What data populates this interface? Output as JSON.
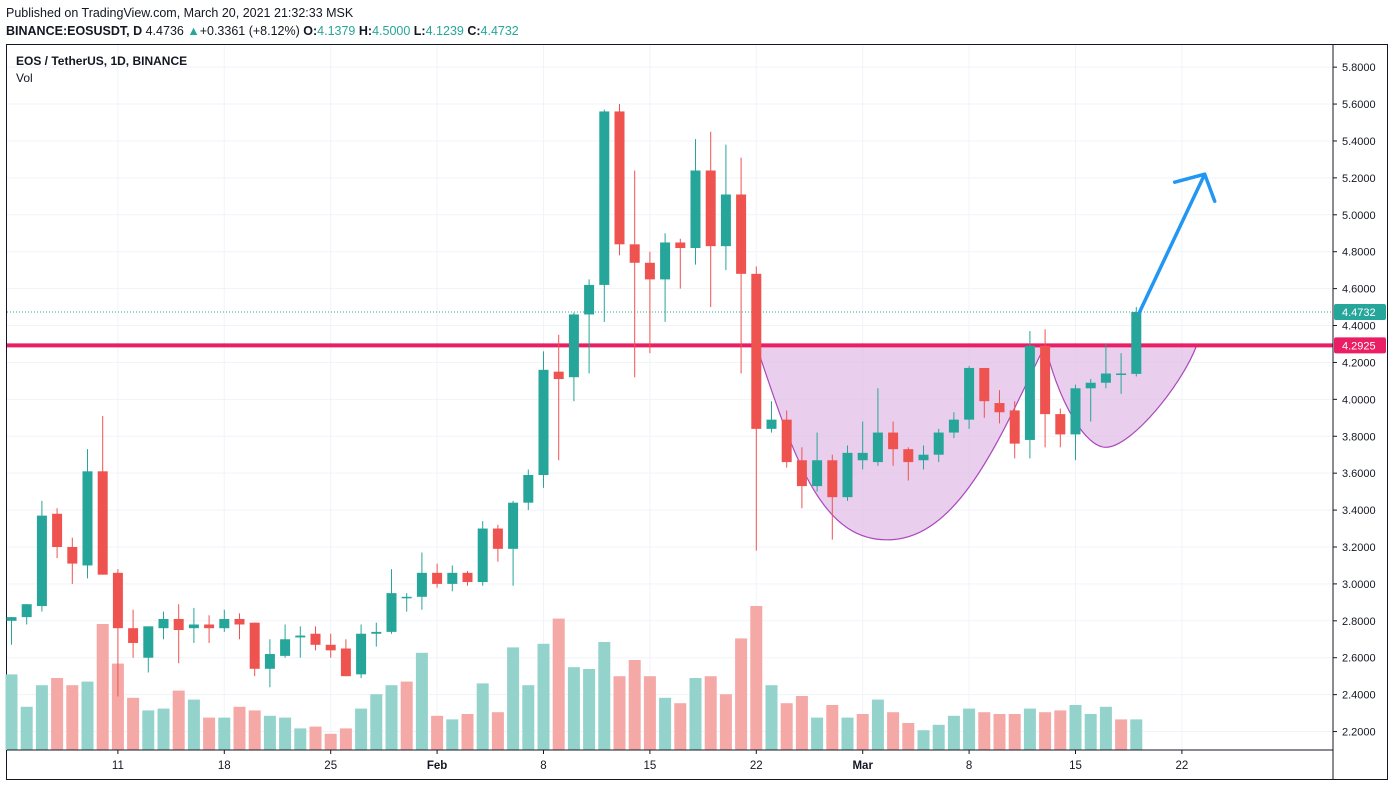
{
  "header": {
    "published": "Published on TradingView.com, March 20, 2021 21:32:33 MSK",
    "symbol": "BINANCE:EOSUSDT, D",
    "last": "4.4736",
    "change_arrow": "▲",
    "change": "+0.3361 (+8.12%)",
    "o_label": "O:",
    "o_value": "4.1379",
    "h_label": "H:",
    "h_value": "4.5000",
    "l_label": "L:",
    "l_value": "4.1239",
    "c_label": "C:",
    "c_value": "4.4732"
  },
  "legend": {
    "title": "EOS / TetherUS, 1D, BINANCE",
    "vol_label": "Vol"
  },
  "colors": {
    "up": "#26a69a",
    "down": "#ef5350",
    "vol_up": "#94d3cc",
    "vol_down": "#f5a9a6",
    "resistance": "#e91e63",
    "arrow": "#2196f3",
    "pattern_fill": "#e1bee7",
    "pattern_stroke": "#ab47bc",
    "grid": "#f0f3fa",
    "text": "#131722"
  },
  "chart_data": {
    "type": "candlestick",
    "title": "EOS / TetherUS, 1D, BINANCE",
    "ylim": [
      2.1,
      5.92
    ],
    "y_ticks": [
      "5.8000",
      "5.6000",
      "5.4000",
      "5.2000",
      "5.0000",
      "4.8000",
      "4.6000",
      "4.4000",
      "4.2000",
      "4.0000",
      "3.8000",
      "3.6000",
      "3.4000",
      "3.2000",
      "3.0000",
      "2.8000",
      "2.6000",
      "2.4000",
      "2.2000"
    ],
    "x_ticks": [
      {
        "label": "11",
        "index": 7
      },
      {
        "label": "18",
        "index": 14
      },
      {
        "label": "25",
        "index": 21
      },
      {
        "label": "Feb",
        "index": 28
      },
      {
        "label": "8",
        "index": 35
      },
      {
        "label": "15",
        "index": 42
      },
      {
        "label": "22",
        "index": 49
      },
      {
        "label": "Mar",
        "index": 56
      },
      {
        "label": "8",
        "index": 63
      },
      {
        "label": "15",
        "index": 70
      },
      {
        "label": "22",
        "index": 77
      }
    ],
    "dates_range": [
      "2021-01-04",
      "2021-03-20"
    ],
    "candles": [
      [
        2.8,
        2.82,
        2.67,
        2.82
      ],
      [
        2.82,
        2.89,
        2.78,
        2.89
      ],
      [
        2.88,
        3.45,
        2.85,
        3.37
      ],
      [
        3.38,
        3.41,
        3.14,
        3.2
      ],
      [
        3.2,
        3.25,
        3.0,
        3.11
      ],
      [
        3.1,
        3.73,
        3.03,
        3.61
      ],
      [
        3.61,
        3.91,
        3.05,
        3.05
      ],
      [
        3.06,
        3.08,
        2.39,
        2.76
      ],
      [
        2.76,
        2.86,
        2.6,
        2.68
      ],
      [
        2.6,
        2.77,
        2.52,
        2.77
      ],
      [
        2.76,
        2.85,
        2.7,
        2.81
      ],
      [
        2.81,
        2.89,
        2.57,
        2.75
      ],
      [
        2.76,
        2.87,
        2.68,
        2.78
      ],
      [
        2.78,
        2.83,
        2.68,
        2.76
      ],
      [
        2.76,
        2.86,
        2.74,
        2.81
      ],
      [
        2.81,
        2.84,
        2.7,
        2.78
      ],
      [
        2.79,
        2.79,
        2.5,
        2.54
      ],
      [
        2.54,
        2.7,
        2.44,
        2.62
      ],
      [
        2.61,
        2.78,
        2.6,
        2.7
      ],
      [
        2.71,
        2.77,
        2.6,
        2.72
      ],
      [
        2.73,
        2.77,
        2.64,
        2.67
      ],
      [
        2.67,
        2.73,
        2.6,
        2.64
      ],
      [
        2.65,
        2.7,
        2.5,
        2.5
      ],
      [
        2.51,
        2.78,
        2.49,
        2.73
      ],
      [
        2.73,
        2.79,
        2.66,
        2.74
      ],
      [
        2.74,
        3.08,
        2.73,
        2.95
      ],
      [
        2.93,
        2.95,
        2.85,
        2.93
      ],
      [
        2.93,
        3.17,
        2.86,
        3.06
      ],
      [
        3.06,
        3.11,
        2.98,
        3.0
      ],
      [
        3.0,
        3.1,
        2.96,
        3.06
      ],
      [
        3.06,
        3.07,
        2.99,
        3.01
      ],
      [
        3.01,
        3.34,
        2.99,
        3.3
      ],
      [
        3.3,
        3.32,
        3.12,
        3.19
      ],
      [
        3.19,
        3.45,
        2.99,
        3.44
      ],
      [
        3.44,
        3.62,
        3.4,
        3.59
      ],
      [
        3.59,
        4.26,
        3.52,
        4.16
      ],
      [
        4.15,
        4.35,
        3.67,
        4.11
      ],
      [
        4.12,
        4.47,
        3.99,
        4.46
      ],
      [
        4.46,
        4.65,
        4.14,
        4.62
      ],
      [
        4.62,
        5.57,
        4.42,
        5.56
      ],
      [
        5.56,
        5.6,
        4.78,
        4.84
      ],
      [
        4.84,
        5.24,
        4.12,
        4.74
      ],
      [
        4.74,
        4.8,
        4.25,
        4.65
      ],
      [
        4.65,
        4.9,
        4.42,
        4.85
      ],
      [
        4.85,
        4.87,
        4.6,
        4.82
      ],
      [
        4.82,
        5.41,
        4.73,
        5.24
      ],
      [
        5.24,
        5.45,
        4.5,
        4.83
      ],
      [
        4.83,
        5.38,
        4.7,
        5.11
      ],
      [
        5.11,
        5.31,
        4.14,
        4.68
      ],
      [
        4.68,
        4.72,
        3.18,
        3.84
      ],
      [
        3.84,
        3.99,
        3.82,
        3.89
      ],
      [
        3.89,
        3.94,
        3.63,
        3.66
      ],
      [
        3.67,
        3.74,
        3.41,
        3.53
      ],
      [
        3.53,
        3.82,
        3.5,
        3.67
      ],
      [
        3.67,
        3.7,
        3.24,
        3.47
      ],
      [
        3.47,
        3.75,
        3.45,
        3.71
      ],
      [
        3.67,
        3.88,
        3.62,
        3.71
      ],
      [
        3.66,
        4.06,
        3.64,
        3.82
      ],
      [
        3.82,
        3.88,
        3.64,
        3.73
      ],
      [
        3.73,
        3.74,
        3.56,
        3.66
      ],
      [
        3.67,
        3.75,
        3.62,
        3.7
      ],
      [
        3.7,
        3.84,
        3.66,
        3.82
      ],
      [
        3.82,
        3.93,
        3.79,
        3.89
      ],
      [
        3.89,
        4.18,
        3.84,
        4.17
      ],
      [
        4.17,
        4.17,
        3.9,
        3.99
      ],
      [
        3.98,
        4.05,
        3.87,
        3.93
      ],
      [
        3.94,
        3.99,
        3.68,
        3.76
      ],
      [
        3.78,
        4.37,
        3.68,
        4.29
      ],
      [
        4.29,
        4.38,
        3.74,
        3.92
      ],
      [
        3.92,
        3.95,
        3.74,
        3.81
      ],
      [
        3.81,
        4.08,
        3.67,
        4.06
      ],
      [
        4.06,
        4.11,
        3.88,
        4.09
      ],
      [
        4.09,
        4.3,
        4.06,
        4.14
      ],
      [
        4.14,
        4.25,
        4.03,
        4.14
      ],
      [
        4.1379,
        4.5,
        4.1239,
        4.4732
      ]
    ],
    "volume": [
      {
        "v": 0.42,
        "up": true
      },
      {
        "v": 0.24,
        "up": true
      },
      {
        "v": 0.36,
        "up": true
      },
      {
        "v": 0.4,
        "up": false
      },
      {
        "v": 0.36,
        "up": false
      },
      {
        "v": 0.38,
        "up": true
      },
      {
        "v": 0.7,
        "up": false
      },
      {
        "v": 0.48,
        "up": false
      },
      {
        "v": 0.29,
        "up": false
      },
      {
        "v": 0.22,
        "up": true
      },
      {
        "v": 0.23,
        "up": true
      },
      {
        "v": 0.33,
        "up": false
      },
      {
        "v": 0.28,
        "up": true
      },
      {
        "v": 0.18,
        "up": false
      },
      {
        "v": 0.18,
        "up": true
      },
      {
        "v": 0.24,
        "up": false
      },
      {
        "v": 0.22,
        "up": false
      },
      {
        "v": 0.19,
        "up": true
      },
      {
        "v": 0.18,
        "up": true
      },
      {
        "v": 0.12,
        "up": true
      },
      {
        "v": 0.13,
        "up": false
      },
      {
        "v": 0.09,
        "up": false
      },
      {
        "v": 0.12,
        "up": false
      },
      {
        "v": 0.23,
        "up": true
      },
      {
        "v": 0.31,
        "up": true
      },
      {
        "v": 0.36,
        "up": true
      },
      {
        "v": 0.38,
        "up": false
      },
      {
        "v": 0.54,
        "up": true
      },
      {
        "v": 0.19,
        "up": false
      },
      {
        "v": 0.17,
        "up": true
      },
      {
        "v": 0.2,
        "up": false
      },
      {
        "v": 0.37,
        "up": true
      },
      {
        "v": 0.21,
        "up": false
      },
      {
        "v": 0.57,
        "up": true
      },
      {
        "v": 0.36,
        "up": true
      },
      {
        "v": 0.59,
        "up": true
      },
      {
        "v": 0.73,
        "up": false
      },
      {
        "v": 0.46,
        "up": true
      },
      {
        "v": 0.45,
        "up": true
      },
      {
        "v": 0.6,
        "up": true
      },
      {
        "v": 0.41,
        "up": false
      },
      {
        "v": 0.5,
        "up": false
      },
      {
        "v": 0.41,
        "up": false
      },
      {
        "v": 0.29,
        "up": true
      },
      {
        "v": 0.26,
        "up": false
      },
      {
        "v": 0.4,
        "up": true
      },
      {
        "v": 0.41,
        "up": false
      },
      {
        "v": 0.31,
        "up": false
      },
      {
        "v": 0.62,
        "up": false
      },
      {
        "v": 0.8,
        "up": false
      },
      {
        "v": 0.36,
        "up": true
      },
      {
        "v": 0.26,
        "up": false
      },
      {
        "v": 0.3,
        "up": false
      },
      {
        "v": 0.18,
        "up": true
      },
      {
        "v": 0.25,
        "up": false
      },
      {
        "v": 0.18,
        "up": true
      },
      {
        "v": 0.2,
        "up": false
      },
      {
        "v": 0.28,
        "up": true
      },
      {
        "v": 0.21,
        "up": false
      },
      {
        "v": 0.15,
        "up": false
      },
      {
        "v": 0.11,
        "up": true
      },
      {
        "v": 0.14,
        "up": true
      },
      {
        "v": 0.19,
        "up": true
      },
      {
        "v": 0.23,
        "up": true
      },
      {
        "v": 0.21,
        "up": false
      },
      {
        "v": 0.2,
        "up": false
      },
      {
        "v": 0.2,
        "up": false
      },
      {
        "v": 0.23,
        "up": true
      },
      {
        "v": 0.21,
        "up": false
      },
      {
        "v": 0.22,
        "up": false
      },
      {
        "v": 0.25,
        "up": true
      },
      {
        "v": 0.2,
        "up": true
      },
      {
        "v": 0.24,
        "up": true
      },
      {
        "v": 0.17,
        "up": false
      },
      {
        "v": 0.17,
        "up": true
      }
    ],
    "price_lines": [
      {
        "label": "4.4732",
        "value": 4.4732,
        "kind": "last"
      },
      {
        "label": "4.2925",
        "value": 4.2925,
        "kind": "resistance"
      }
    ],
    "annotations": {
      "pattern": "cup-and-handle",
      "cup": {
        "start_index": 49,
        "bottom_index": 58,
        "bottom_value": 3.24,
        "end_index": 68,
        "rim_value": 4.2925
      },
      "handle": {
        "start_index": 68,
        "bottom_index": 72,
        "bottom_value": 3.74,
        "end_index": 76
      },
      "arrow": {
        "from_index": 74,
        "from_value": 4.47,
        "to_index": 78.5,
        "to_value": 5.22
      }
    },
    "grid": true,
    "legend_position": "top-left"
  }
}
